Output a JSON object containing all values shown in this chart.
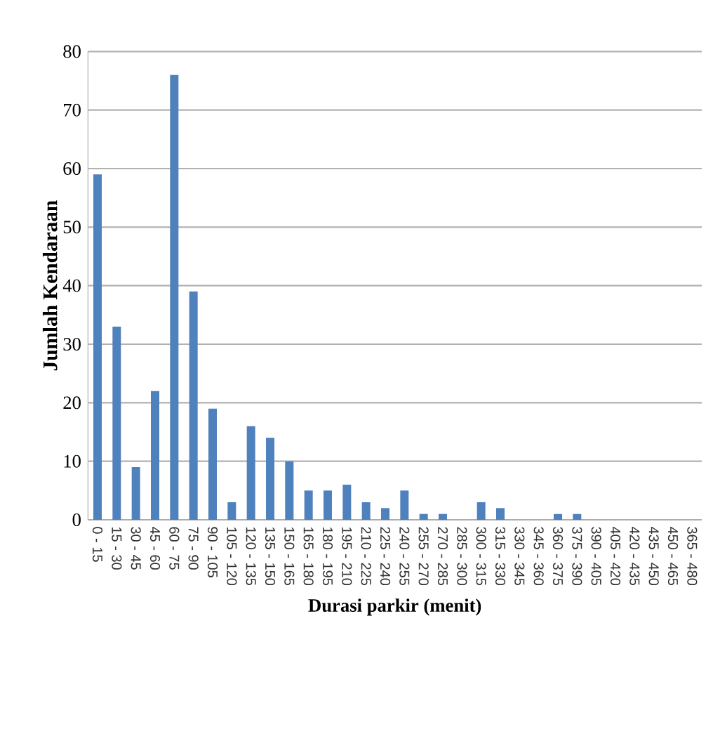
{
  "chart_data": {
    "type": "bar",
    "xlabel": "Durasi parkir (menit)",
    "ylabel": "Jumlah Kendaraan",
    "categories": [
      "0 - 15",
      "15 - 30",
      "30 - 45",
      "45 - 60",
      "60 - 75",
      "75 - 90",
      "90 - 105",
      "105 - 120",
      "120 - 135",
      "135 - 150",
      "150 - 165",
      "165 - 180",
      "180 - 195",
      "195 - 210",
      "210 - 225",
      "225 - 240",
      "240 - 255",
      "255 - 270",
      "270 - 285",
      "285 - 300",
      "300 - 315",
      "315 - 330",
      "330 - 345",
      "345 - 360",
      "360 - 375",
      "375 - 390",
      "390 - 405",
      "405 - 420",
      "420 - 435",
      "435 - 450",
      "450 - 465",
      "365 - 480"
    ],
    "values": [
      59,
      33,
      9,
      22,
      76,
      39,
      19,
      3,
      16,
      14,
      10,
      5,
      5,
      6,
      3,
      2,
      5,
      1,
      1,
      0,
      3,
      2,
      0,
      0,
      1,
      1,
      0,
      0,
      0,
      0,
      0,
      0
    ],
    "color": "#4f81bd",
    "ylim": [
      0,
      80
    ],
    "yticks": [
      0,
      10,
      20,
      30,
      40,
      50,
      60,
      70,
      80
    ],
    "grid": "y"
  }
}
